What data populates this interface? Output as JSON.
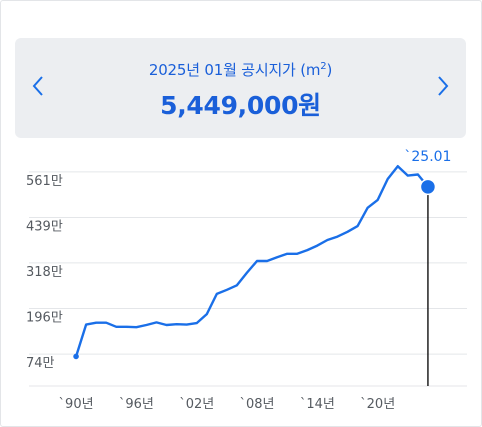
{
  "header": {
    "subtitle": "2025년 01월 공시지가 (m",
    "subtitle_sup": "2",
    "subtitle_close": ")",
    "price": "5,449,000원",
    "prev_icon": "chevron-left-icon",
    "next_icon": "chevron-right-icon"
  },
  "colors": {
    "accent": "#1a6fe8",
    "header_bg": "#eceef1",
    "grid": "#e4e6e9"
  },
  "chart_data": {
    "type": "line",
    "title": "",
    "xlabel": "",
    "ylabel": "",
    "y_ticks": [
      "561만",
      "439만",
      "318만",
      "196만",
      "74만"
    ],
    "y_tick_values": [
      561,
      439,
      318,
      196,
      74
    ],
    "x_ticks": [
      "`90년",
      "`96년",
      "`02년",
      "`08년",
      "`14년",
      "`20년"
    ],
    "x_tick_values": [
      1990,
      1996,
      2002,
      2008,
      2014,
      2020
    ],
    "xlim": [
      1988.8,
      2026.2
    ],
    "ylim": [
      13,
      622
    ],
    "grid": true,
    "unit": "만원/m²",
    "highlight": {
      "label": "`25.01",
      "x": 2025.0,
      "y": 545
    },
    "series": [
      {
        "x": [
          1990,
          1991,
          1992,
          1993,
          1994,
          1995,
          1996,
          1997,
          1998,
          1999,
          2000,
          2001,
          2002,
          2003,
          2004,
          2005,
          2006,
          2007,
          2008,
          2009,
          2010,
          2011,
          2012,
          2013,
          2014,
          2015,
          2016,
          2017,
          2018,
          2019,
          2020,
          2021,
          2022,
          2023,
          2024,
          2025
        ],
        "values": [
          92,
          177,
          182,
          182,
          171,
          171,
          170,
          176,
          183,
          176,
          178,
          177,
          181,
          205,
          259,
          270,
          282,
          316,
          347,
          347,
          357,
          366,
          366,
          376,
          388,
          403,
          412,
          425,
          440,
          489,
          510,
          566,
          600,
          575,
          578,
          545
        ]
      }
    ]
  }
}
